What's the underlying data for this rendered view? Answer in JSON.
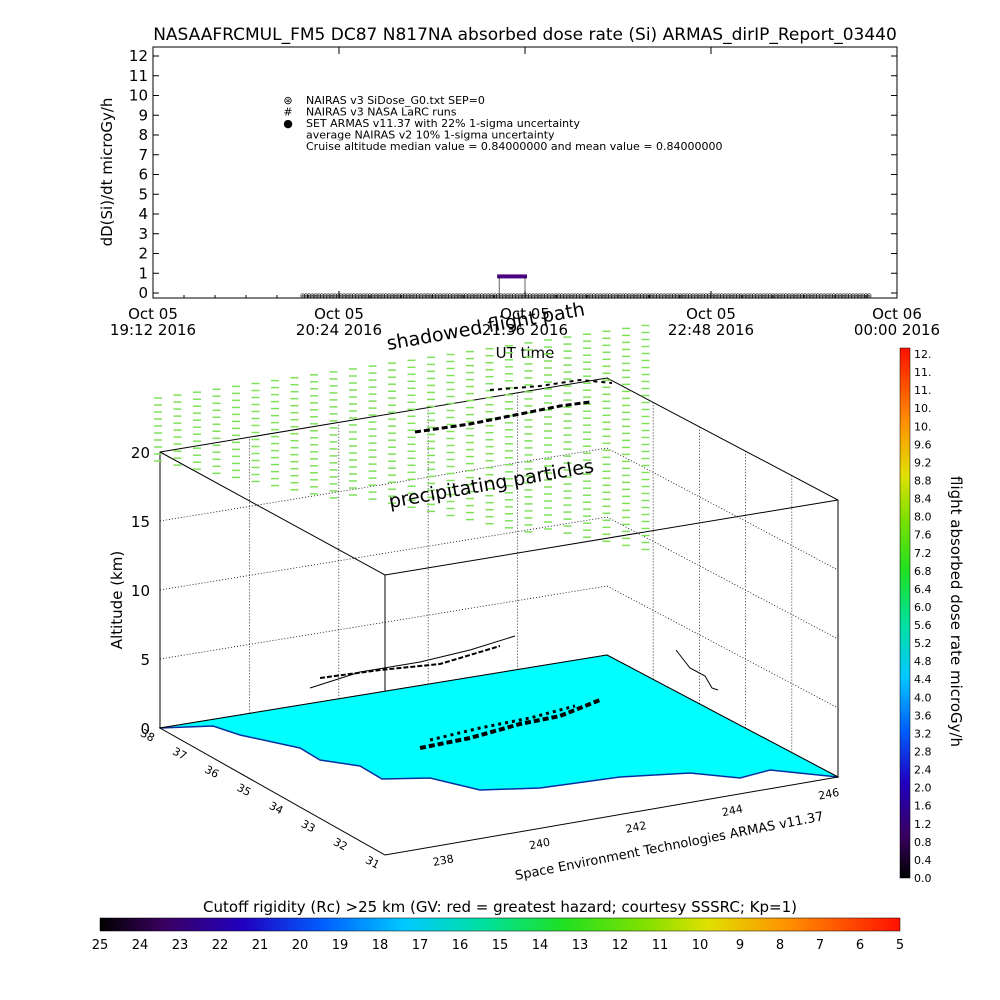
{
  "title": "NASAAFRCMUL_FM5 DC87 N817NA absorbed dose rate (Si) ARMAS_dirIP_Report_03440",
  "chart_data": [
    {
      "type": "scatter",
      "ylabel": "dD(Si)/dt microGy/h",
      "xlabel": "UT time",
      "ylim": [
        0,
        12
      ],
      "yticks": [
        "0",
        "1",
        "2",
        "3",
        "4",
        "5",
        "6",
        "7",
        "8",
        "9",
        "10",
        "11",
        "12"
      ],
      "xticks": [
        {
          "l1": "Oct 05",
          "l2": "19:12 2016"
        },
        {
          "l1": "Oct 05",
          "l2": "20:24 2016"
        },
        {
          "l1": "Oct 05",
          "l2": "21:36 2016"
        },
        {
          "l1": "Oct 05",
          "l2": "22:48 2016"
        },
        {
          "l1": "Oct 06",
          "l2": "00:00 2016"
        }
      ],
      "legend": [
        {
          "symbol": "⊛",
          "text": "NAIRAS v3 SiDose_G0.txt SEP=0"
        },
        {
          "symbol": "#",
          "text": "NAIRAS v3 NASA LaRC runs"
        },
        {
          "symbol": "●",
          "text": "SET ARMAS v11.37 with 22% 1-sigma uncertainty"
        },
        {
          "symbol": "",
          "text": "average NAIRAS v2 10% 1-sigma uncertainty"
        },
        {
          "symbol": "",
          "text": "Cruise altitude median value = 0.84000000 and mean value = 0.84000000"
        }
      ],
      "series": [
        {
          "name": "NAIRAS v3 SiDose_G0.txt SEP=0",
          "time_range": [
            "20:10",
            "23:50"
          ],
          "value": 0.0,
          "color": "#000000"
        },
        {
          "name": "SET ARMAS v11.37 with 22% 1-sigma uncertainty",
          "time_range": [
            "21:26",
            "21:36"
          ],
          "value": 0.84,
          "color": "#4b0082"
        }
      ]
    },
    {
      "type": "scatter",
      "zlabel": "Altitude (km)",
      "zticks": [
        "0",
        "5",
        "10",
        "15",
        "20"
      ],
      "lat_ticks": [
        "38",
        "37",
        "36",
        "35",
        "34",
        "33",
        "32",
        "31"
      ],
      "lon_ticks": [
        "238",
        "240",
        "242",
        "244",
        "246"
      ],
      "annotations": [
        "shadowed flight path",
        "precipitating particles"
      ],
      "credit": "Space Environment Technologies ARMAS v11.37",
      "colorbar": {
        "label": "flight absorbed dose rate microGy/h",
        "ticks": [
          "12.",
          "11.",
          "11.",
          "10.",
          "10.",
          "9.6",
          "9.2",
          "8.8",
          "8.4",
          "8.0",
          "7.6",
          "7.2",
          "6.8",
          "6.4",
          "6.0",
          "5.6",
          "5.2",
          "4.8",
          "4.4",
          "4.0",
          "3.6",
          "3.2",
          "2.8",
          "2.4",
          "2.0",
          "1.6",
          "1.2",
          "0.8",
          "0.4",
          "0.0"
        ],
        "range": [
          0,
          12
        ]
      },
      "particle_color": "#7fe05a",
      "ocean_color": "#00ffff",
      "land_color": "#ffffff"
    },
    {
      "type": "heatmap",
      "title": "Cutoff rigidity (Rc) >25 km (GV: red = greatest hazard; courtesy SSSRC; Kp=1)",
      "ticks": [
        "25",
        "24",
        "23",
        "22",
        "21",
        "20",
        "19",
        "18",
        "17",
        "16",
        "15",
        "14",
        "13",
        "12",
        "11",
        "10",
        "9",
        "8",
        "7",
        "6",
        "5"
      ]
    }
  ]
}
